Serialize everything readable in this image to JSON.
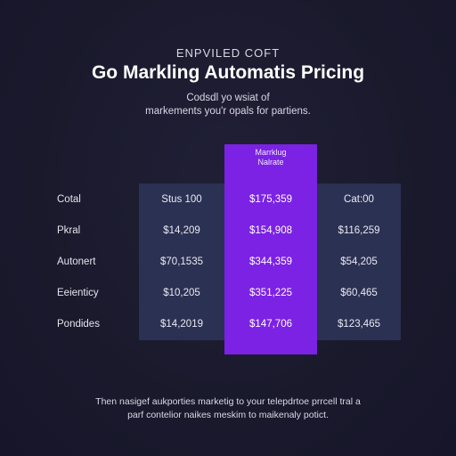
{
  "header": {
    "eyebrow": "ENPVILED COFT",
    "title": "Go Markling Automatis Pricing",
    "subtitle_line1": "Codsdl yo wsiat of",
    "subtitle_line2": "markements you'r opals for partiens."
  },
  "table": {
    "featured_header_line1": "Marrklug",
    "featured_header_line2": "Nalrate",
    "rows": [
      {
        "label": "Cotal",
        "c1": "Stus 100",
        "c2": "$175,359",
        "c3": "Cat:00"
      },
      {
        "label": "Pkral",
        "c1": "$14,209",
        "c2": "$154,908",
        "c3": "$116,259"
      },
      {
        "label": "Autonert",
        "c1": "$70,1535",
        "c2": "$344,359",
        "c3": "$54,205"
      },
      {
        "label": "Eeienticy",
        "c1": "$10,205",
        "c2": "$351,225",
        "c3": "$60,465"
      },
      {
        "label": "Pondides",
        "c1": "$14,2019",
        "c2": "$147,706",
        "c3": "$123,465"
      }
    ]
  },
  "footer": {
    "line1": "Then nasigef aukporties marketig to your telepdrtoe prrcell tral a",
    "line2": "parf contelior naikes meskim to maikenaly potict."
  },
  "colors": {
    "background": "#1a192c",
    "column": "#2b3152",
    "featured": "#7b22e4"
  }
}
